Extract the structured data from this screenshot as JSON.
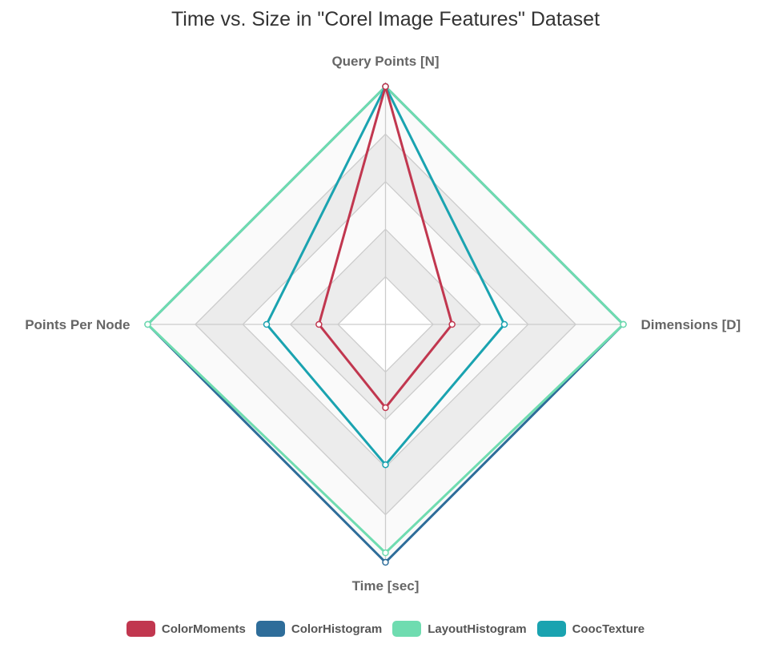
{
  "chart_data": {
    "type": "radar",
    "title": "Time vs. Size in \"Corel Image Features\" Dataset",
    "axes": [
      "Query Points [N]",
      "Dimensions [D]",
      "Time [sec]",
      "Points Per Node"
    ],
    "r_range": [
      0,
      5
    ],
    "grid": true,
    "legend_position": "bottom",
    "series": [
      {
        "name": "ColorMoments",
        "values": [
          5.0,
          1.4,
          1.75,
          1.4
        ],
        "color": "#c1374f"
      },
      {
        "name": "ColorHistogram",
        "values": [
          5.0,
          5.0,
          5.0,
          5.0
        ],
        "color": "#2e6d9a"
      },
      {
        "name": "LayoutHistogram",
        "values": [
          5.0,
          5.0,
          4.8,
          5.0
        ],
        "color": "#6fdcb0"
      },
      {
        "name": "CoocTexture",
        "values": [
          5.0,
          2.5,
          2.95,
          2.5
        ],
        "color": "#1aa3b0"
      }
    ]
  }
}
